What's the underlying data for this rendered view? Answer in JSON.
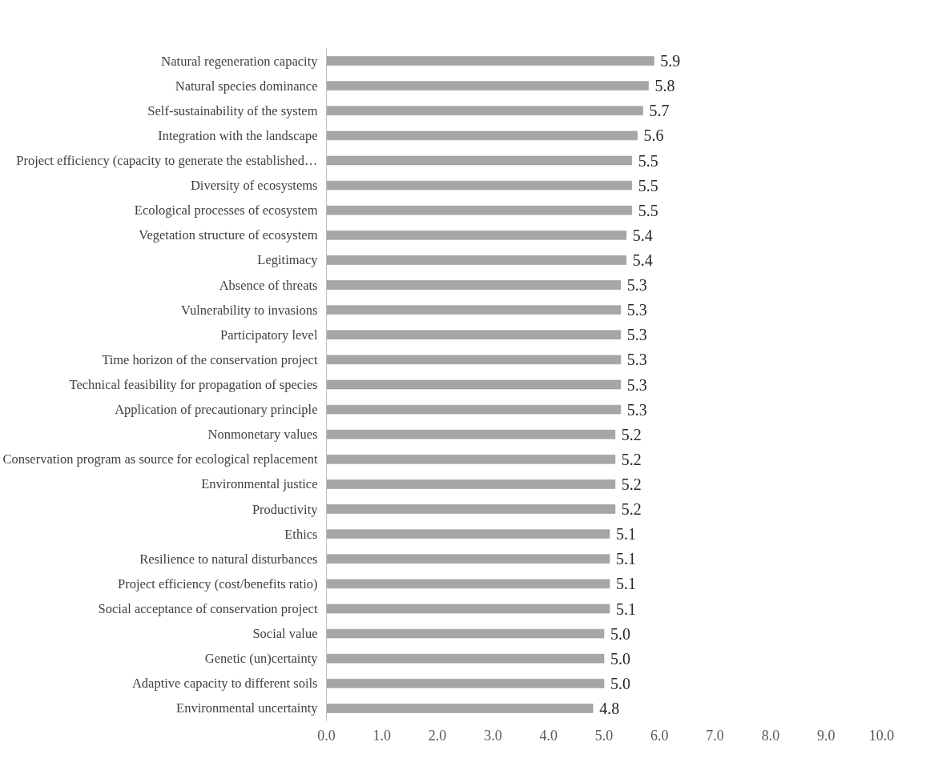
{
  "chart_data": {
    "type": "bar",
    "orientation": "horizontal",
    "categories": [
      "Natural regeneration capacity",
      "Natural species dominance",
      "Self-sustainability of the system",
      "Integration with the landscape",
      "Project efficiency (capacity to generate the established…",
      "Diversity of ecosystems",
      "Ecological processes of ecosystem",
      "Vegetation structure of ecosystem",
      "Legitimacy",
      "Absence of threats",
      "Vulnerability to invasions",
      "Participatory level",
      "Time horizon of the conservation project",
      "Technical feasibility for propagation of species",
      "Application of precautionary principle",
      "Nonmonetary values",
      "Conservation program as source for ecological replacement",
      "Environmental justice",
      "Productivity",
      "Ethics",
      "Resilience to natural disturbances",
      "Project efficiency (cost/benefits ratio)",
      "Social acceptance of conservation project",
      "Social value",
      "Genetic (un)certainty",
      "Adaptive capacity to different soils",
      "Environmental uncertainty"
    ],
    "values": [
      5.9,
      5.8,
      5.7,
      5.6,
      5.5,
      5.5,
      5.5,
      5.4,
      5.4,
      5.3,
      5.3,
      5.3,
      5.3,
      5.3,
      5.3,
      5.2,
      5.2,
      5.2,
      5.2,
      5.1,
      5.1,
      5.1,
      5.1,
      5.0,
      5.0,
      5.0,
      4.8
    ],
    "value_labels": [
      "5.9",
      "5.8",
      "5.7",
      "5.6",
      "5.5",
      "5.5",
      "5.5",
      "5.4",
      "5.4",
      "5.3",
      "5.3",
      "5.3",
      "5.3",
      "5.3",
      "5.3",
      "5.2",
      "5.2",
      "5.2",
      "5.2",
      "5.1",
      "5.1",
      "5.1",
      "5.1",
      "5.0",
      "5.0",
      "5.0",
      "4.8"
    ],
    "color": "#a6a6a6",
    "xlim": [
      0,
      10
    ],
    "xticks": [
      {
        "value": 0,
        "label": "0.0"
      },
      {
        "value": 1,
        "label": "1.0"
      },
      {
        "value": 2,
        "label": "2.0"
      },
      {
        "value": 3,
        "label": "3.0"
      },
      {
        "value": 4,
        "label": "4.0"
      },
      {
        "value": 5,
        "label": "5.0"
      },
      {
        "value": 6,
        "label": "6.0"
      },
      {
        "value": 7,
        "label": "7.0"
      },
      {
        "value": 8,
        "label": "8.0"
      },
      {
        "value": 9,
        "label": "9.0"
      },
      {
        "value": 10,
        "label": "10.0"
      }
    ],
    "grid": false
  }
}
